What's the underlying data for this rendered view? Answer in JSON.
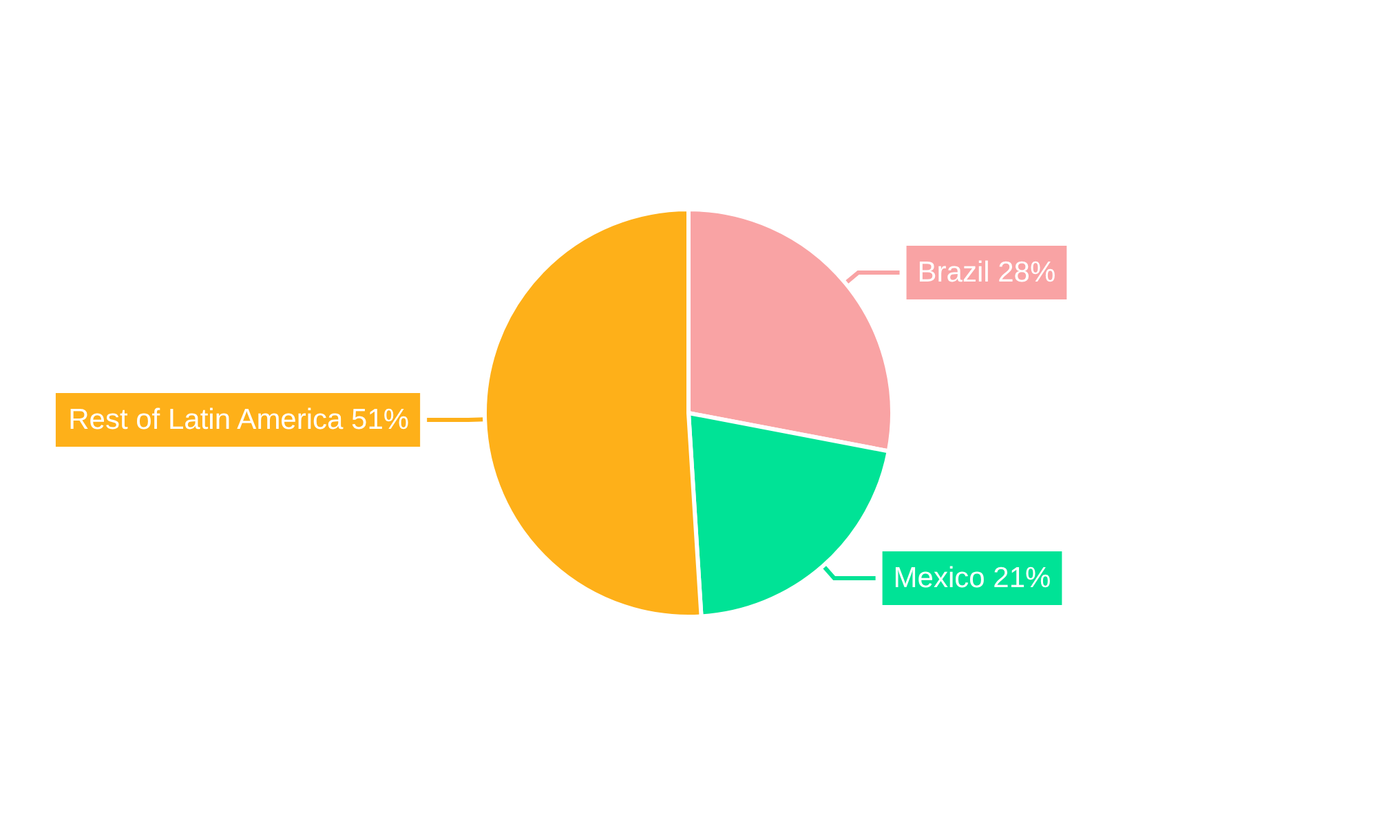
{
  "chart_data": {
    "type": "pie",
    "categories": [
      "Brazil",
      "Mexico",
      "Rest of Latin America"
    ],
    "values": [
      28,
      21,
      51
    ],
    "value_labels": [
      "28%",
      "21%",
      "51%"
    ],
    "colors": [
      "#f9a3a4",
      "#00e396",
      "#feb019"
    ],
    "legend": false
  }
}
